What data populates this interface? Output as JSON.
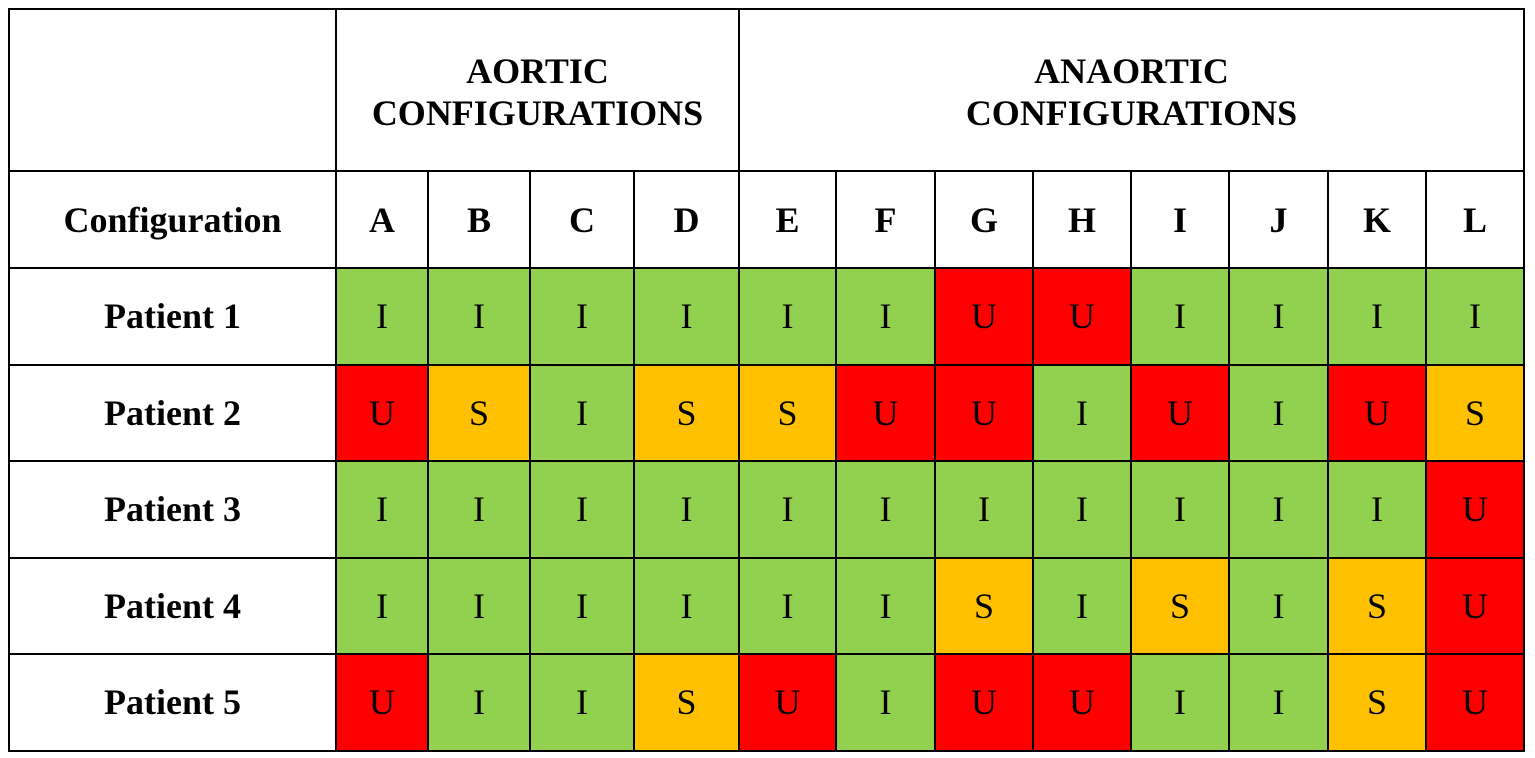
{
  "table": {
    "groups": [
      [
        "AORTIC",
        "CONFIGURATIONS"
      ],
      [
        "ANAORTIC",
        "CONFIGURATIONS"
      ]
    ],
    "corner": "Configuration",
    "columns": [
      "A",
      "B",
      "C",
      "D",
      "E",
      "F",
      "G",
      "H",
      "I",
      "J",
      "K",
      "L"
    ],
    "rows": [
      {
        "label": "Patient 1",
        "cells": [
          "I",
          "I",
          "I",
          "I",
          "I",
          "I",
          "U",
          "U",
          "I",
          "I",
          "I",
          "I"
        ]
      },
      {
        "label": "Patient 2",
        "cells": [
          "U",
          "S",
          "I",
          "S",
          "S",
          "U",
          "U",
          "I",
          "U",
          "I",
          "U",
          "S"
        ]
      },
      {
        "label": "Patient 3",
        "cells": [
          "I",
          "I",
          "I",
          "I",
          "I",
          "I",
          "I",
          "I",
          "I",
          "I",
          "I",
          "U"
        ]
      },
      {
        "label": "Patient 4",
        "cells": [
          "I",
          "I",
          "I",
          "I",
          "I",
          "I",
          "S",
          "I",
          "S",
          "I",
          "S",
          "U"
        ]
      },
      {
        "label": "Patient 5",
        "cells": [
          "U",
          "I",
          "I",
          "S",
          "U",
          "I",
          "U",
          "U",
          "I",
          "I",
          "S",
          "U"
        ]
      }
    ],
    "colors": {
      "I": "#92d050",
      "S": "#ffc000",
      "U": "#ff0000"
    }
  }
}
